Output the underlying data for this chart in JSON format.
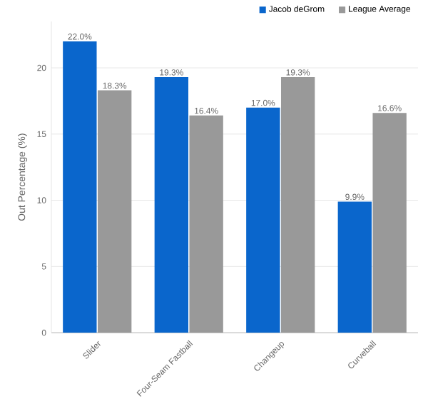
{
  "chart_data": {
    "type": "bar",
    "ylabel": "Out Percentage (%)",
    "categories": [
      "Slider",
      "Four-Seam Fastball",
      "Changeup",
      "Curveball"
    ],
    "series": [
      {
        "name": "Jacob deGrom",
        "color": "#0a66cc",
        "values": [
          22.0,
          19.3,
          17.0,
          9.9
        ],
        "value_labels": [
          "22.0%",
          "19.3%",
          "17.0%",
          "9.9%"
        ]
      },
      {
        "name": "League Average",
        "color": "#999999",
        "values": [
          18.3,
          16.4,
          19.3,
          16.6
        ],
        "value_labels": [
          "18.3%",
          "16.4%",
          "19.3%",
          "16.6%"
        ]
      }
    ],
    "ylim": [
      0,
      23.5
    ],
    "yticks": [
      0,
      5,
      10,
      15,
      20
    ],
    "grid": "y",
    "legend": "top right"
  }
}
